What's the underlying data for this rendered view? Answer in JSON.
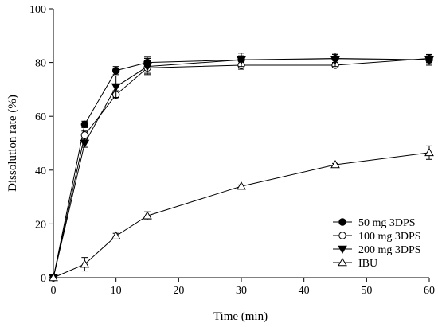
{
  "chart_data": {
    "type": "line",
    "title": "",
    "xlabel": "Time (min)",
    "ylabel": "Dissolution rate (%)",
    "xlim": [
      0,
      60
    ],
    "ylim": [
      0,
      100
    ],
    "xticks": [
      0,
      10,
      20,
      30,
      40,
      50,
      60
    ],
    "yticks": [
      0,
      20,
      40,
      60,
      80,
      100
    ],
    "grid": false,
    "legend_position": "bottom-right",
    "x": [
      0,
      5,
      10,
      15,
      30,
      45,
      60
    ],
    "series": [
      {
        "name": "50 mg 3DPS",
        "marker": "filled-circle",
        "values": [
          0,
          57,
          77,
          80,
          81,
          81.5,
          81
        ],
        "errors": [
          0,
          1.2,
          1.5,
          2,
          1.5,
          1.5,
          1.5
        ]
      },
      {
        "name": "100 mg 3DPS",
        "marker": "open-circle",
        "values": [
          0,
          53,
          68,
          78,
          79,
          79,
          81.5
        ],
        "errors": [
          0,
          1.5,
          1.5,
          2,
          1.5,
          1,
          1.5
        ]
      },
      {
        "name": "200 mg 3DPS",
        "marker": "filled-triangle-down",
        "values": [
          0,
          50,
          71,
          78.5,
          81,
          81,
          81
        ],
        "errors": [
          0,
          1.5,
          4,
          3,
          2.5,
          2.5,
          2
        ]
      },
      {
        "name": "IBU",
        "marker": "open-triangle-up",
        "values": [
          0,
          5,
          15.5,
          23,
          34,
          42,
          46.5
        ],
        "errors": [
          0,
          2.5,
          1,
          1.5,
          0.5,
          0.5,
          2.5
        ]
      }
    ]
  }
}
